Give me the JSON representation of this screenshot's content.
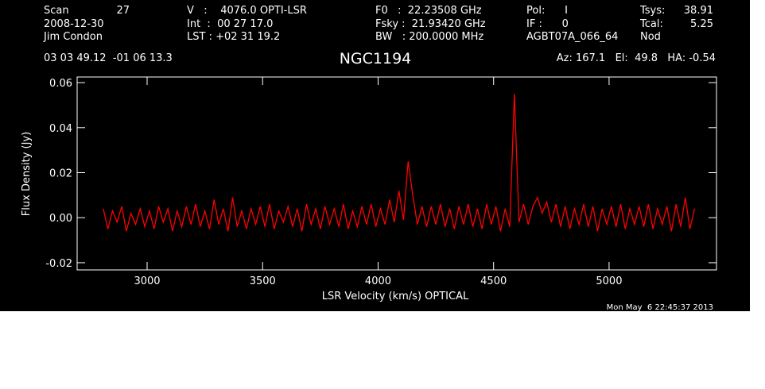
{
  "chart_data": {
    "type": "line",
    "title": "NGC1194",
    "xlabel": "LSR Velocity (km/s) OPTICAL",
    "ylabel": "Flux Density (Jy)",
    "timestamp": "Mon May  6 22:45:37 2013",
    "annotations": [
      "Scan",
      "27",
      "2008-12-30",
      "Jim Condon",
      "V   :    4076.0 OPTI-LSR",
      "Int  :  00 27 17.0",
      "LST : +02 31 19.2",
      "F0   :  22.23508 GHz",
      "Fsky :  21.93420 GHz",
      "BW   : 200.0000 MHz",
      "Pol:      I",
      "IF :      0",
      "AGBT07A_066_64",
      "Tsys:",
      "38.91",
      "Tcal:",
      "5.25",
      "Nod",
      "03 03 49.12  -01 06 13.3",
      "Az: 167.1   El:  49.8   HA: -0.54"
    ],
    "xlim": [
      2697,
      5465
    ],
    "xticks": [
      3000,
      3500,
      4000,
      4500,
      5000
    ],
    "ylim": [
      -0.0232,
      0.0625
    ],
    "yticks": [
      {
        "value": -0.02,
        "label": "-0.02"
      },
      {
        "value": 0,
        "label": "0.00"
      },
      0.02,
      0.04,
      0.06
    ],
    "x": [
      2810,
      2830,
      2850,
      2870,
      2890,
      2910,
      2930,
      2950,
      2970,
      2990,
      3010,
      3030,
      3050,
      3070,
      3090,
      3110,
      3130,
      3150,
      3170,
      3190,
      3210,
      3230,
      3250,
      3270,
      3290,
      3310,
      3330,
      3350,
      3370,
      3390,
      3410,
      3430,
      3450,
      3470,
      3490,
      3510,
      3530,
      3550,
      3570,
      3590,
      3610,
      3630,
      3650,
      3670,
      3690,
      3710,
      3730,
      3750,
      3770,
      3790,
      3810,
      3830,
      3850,
      3870,
      3890,
      3910,
      3930,
      3950,
      3970,
      3990,
      4010,
      4030,
      4050,
      4070,
      4090,
      4110,
      4130,
      4150,
      4170,
      4190,
      4210,
      4230,
      4250,
      4270,
      4290,
      4310,
      4330,
      4350,
      4370,
      4390,
      4410,
      4430,
      4450,
      4470,
      4490,
      4510,
      4530,
      4550,
      4570,
      4590,
      4610,
      4630,
      4650,
      4670,
      4690,
      4710,
      4730,
      4750,
      4770,
      4790,
      4810,
      4830,
      4850,
      4870,
      4890,
      4910,
      4930,
      4950,
      4970,
      4990,
      5010,
      5030,
      5050,
      5070,
      5090,
      5110,
      5130,
      5150,
      5170,
      5190,
      5210,
      5230,
      5250,
      5270,
      5290,
      5310,
      5330,
      5350,
      5370
    ],
    "series": [
      {
        "color": "#ff0000",
        "values": [
          0.004,
          -0.005,
          0.003,
          -0.002,
          0.005,
          -0.006,
          0.002,
          -0.003,
          0.004,
          -0.004,
          0.003,
          -0.005,
          0.005,
          -0.002,
          0.004,
          -0.006,
          0.003,
          -0.004,
          0.005,
          -0.003,
          0.006,
          -0.004,
          0.003,
          -0.005,
          0.008,
          -0.003,
          0.004,
          -0.006,
          0.009,
          -0.004,
          0.003,
          -0.005,
          0.004,
          -0.003,
          0.005,
          -0.004,
          0.006,
          -0.005,
          0.003,
          -0.002,
          0.005,
          -0.004,
          0.004,
          -0.006,
          0.006,
          -0.003,
          0.004,
          -0.005,
          0.005,
          -0.003,
          0.004,
          -0.004,
          0.006,
          -0.005,
          0.003,
          -0.004,
          0.005,
          -0.003,
          0.006,
          -0.004,
          0.004,
          -0.003,
          0.008,
          -0.002,
          0.012,
          -0.001,
          0.025,
          0.01,
          -0.003,
          0.005,
          -0.004,
          0.005,
          -0.003,
          0.006,
          -0.004,
          0.004,
          -0.005,
          0.005,
          -0.003,
          0.006,
          -0.004,
          0.004,
          -0.005,
          0.006,
          -0.003,
          0.005,
          -0.006,
          0.004,
          -0.004,
          0.055,
          -0.002,
          0.006,
          -0.003,
          0.005,
          0.009,
          0.002,
          0.007,
          -0.002,
          0.006,
          -0.004,
          0.005,
          -0.005,
          0.004,
          -0.003,
          0.006,
          -0.004,
          0.005,
          -0.006,
          0.004,
          -0.003,
          0.005,
          -0.004,
          0.006,
          -0.005,
          0.004,
          -0.003,
          0.005,
          -0.004,
          0.006,
          -0.005,
          0.004,
          -0.003,
          0.005,
          -0.006,
          0.006,
          -0.004,
          0.009,
          -0.005,
          0.004
        ]
      }
    ]
  }
}
